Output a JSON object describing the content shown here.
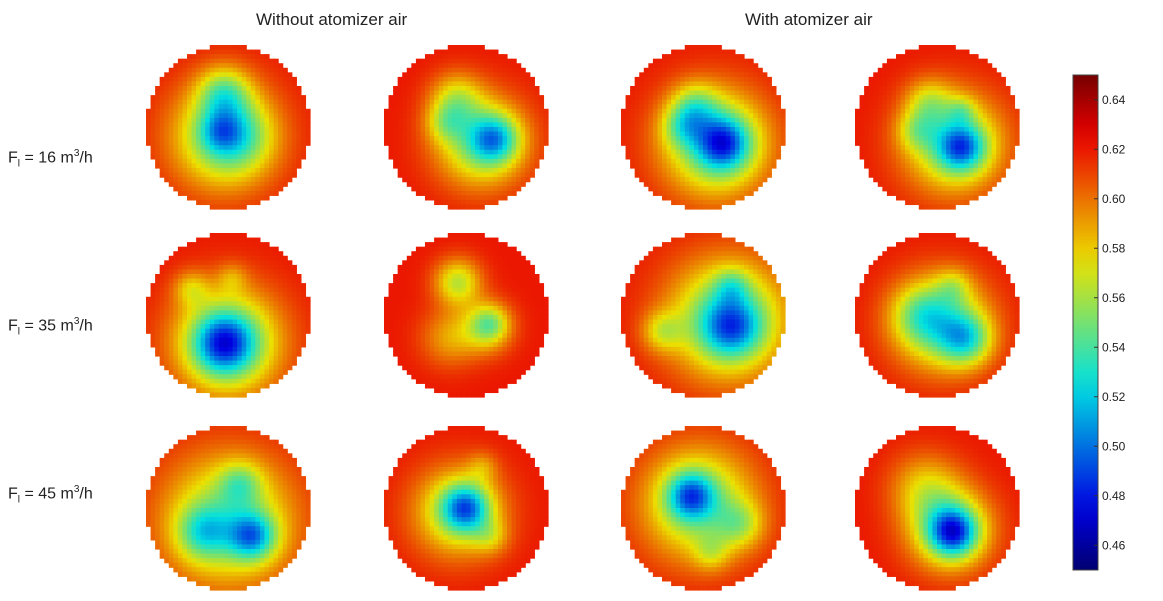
{
  "headers": {
    "without": "Without atomizer air",
    "with": "With atomizer air"
  },
  "rows": [
    {
      "prefix": "F",
      "sub": "l",
      "mid": " = 16 m",
      "sup": "3",
      "suffix": "/h"
    },
    {
      "prefix": "F",
      "sub": "l",
      "mid": " = 35 m",
      "sup": "3",
      "suffix": "/h"
    },
    {
      "prefix": "F",
      "sub": "l",
      "mid": " = 45 m",
      "sup": "3",
      "suffix": "/h"
    }
  ],
  "chart_data": {
    "type": "heatmap",
    "colorbar": {
      "min": 0.45,
      "max": 0.65,
      "ticks": [
        "0.64",
        "0.62",
        "0.60",
        "0.58",
        "0.56",
        "0.54",
        "0.52",
        "0.50",
        "0.48",
        "0.46"
      ],
      "colormap": "jet"
    },
    "background_value": 0.62,
    "panels": [
      [
        {
          "blobs": [
            [
              -0.05,
              -0.42,
              0.22,
              0.05
            ],
            [
              -0.05,
              0.12,
              0.45,
              0.07
            ],
            [
              0.1,
              0.1,
              0.28,
              0.035
            ],
            [
              -0.1,
              0.05,
              0.17,
              0.03
            ]
          ]
        },
        {
          "blobs": [
            [
              -0.12,
              -0.35,
              0.22,
              0.04
            ],
            [
              0.18,
              0.18,
              0.38,
              0.07
            ],
            [
              0.35,
              0.15,
              0.2,
              0.06
            ],
            [
              -0.25,
              -0.05,
              0.17,
              0.03
            ]
          ]
        },
        {
          "blobs": [
            [
              -0.1,
              -0.25,
              0.2,
              0.04
            ],
            [
              0.15,
              0.2,
              0.45,
              0.08
            ],
            [
              0.25,
              0.2,
              0.22,
              0.07
            ],
            [
              -0.25,
              0.0,
              0.18,
              0.035
            ]
          ]
        },
        {
          "blobs": [
            [
              -0.1,
              -0.3,
              0.2,
              0.035
            ],
            [
              0.2,
              0.2,
              0.42,
              0.07
            ],
            [
              0.3,
              0.25,
              0.2,
              0.07
            ],
            [
              -0.25,
              0.05,
              0.17,
              0.03
            ],
            [
              0.3,
              -0.2,
              0.12,
              0.025
            ]
          ]
        }
      ],
      [
        {
          "blobs": [
            [
              0.0,
              0.33,
              0.45,
              0.08
            ],
            [
              -0.05,
              0.35,
              0.25,
              0.07
            ],
            [
              -0.45,
              -0.32,
              0.15,
              0.03
            ],
            [
              0.05,
              -0.45,
              0.13,
              0.02
            ]
          ]
        },
        {
          "blobs": [
            [
              -0.1,
              -0.4,
              0.2,
              0.055
            ],
            [
              0.25,
              0.15,
              0.22,
              0.045
            ],
            [
              -0.2,
              0.28,
              0.25,
              0.03
            ],
            [
              0.3,
              0.1,
              0.15,
              0.03
            ]
          ]
        },
        {
          "blobs": [
            [
              0.3,
              0.05,
              0.5,
              0.08
            ],
            [
              0.35,
              0.15,
              0.25,
              0.06
            ],
            [
              -0.5,
              0.2,
              0.17,
              0.035
            ],
            [
              0.35,
              -0.35,
              0.15,
              0.03
            ]
          ]
        },
        {
          "blobs": [
            [
              0.05,
              0.1,
              0.4,
              0.07
            ],
            [
              0.35,
              0.3,
              0.22,
              0.06
            ],
            [
              -0.2,
              0.0,
              0.25,
              0.035
            ],
            [
              0.2,
              -0.35,
              0.15,
              0.025
            ]
          ]
        }
      ],
      [
        {
          "blobs": [
            [
              0.0,
              0.15,
              0.55,
              0.07
            ],
            [
              0.3,
              0.35,
              0.2,
              0.07
            ],
            [
              -0.3,
              0.3,
              0.22,
              0.045
            ],
            [
              0.15,
              -0.3,
              0.18,
              0.035
            ]
          ]
        },
        {
          "blobs": [
            [
              -0.1,
              0.05,
              0.38,
              0.06
            ],
            [
              0.0,
              0.0,
              0.2,
              0.075
            ],
            [
              0.3,
              0.35,
              0.15,
              0.025
            ],
            [
              0.2,
              -0.5,
              0.13,
              0.02
            ]
          ]
        },
        {
          "blobs": [
            [
              -0.05,
              -0.05,
              0.48,
              0.07
            ],
            [
              -0.15,
              -0.15,
              0.2,
              0.07
            ],
            [
              0.45,
              0.2,
              0.2,
              0.035
            ],
            [
              0.1,
              0.55,
              0.15,
              0.025
            ]
          ]
        },
        {
          "blobs": [
            [
              0.15,
              0.25,
              0.35,
              0.07
            ],
            [
              0.2,
              0.3,
              0.2,
              0.08
            ],
            [
              -0.15,
              -0.25,
              0.3,
              0.035
            ]
          ]
        }
      ]
    ]
  }
}
